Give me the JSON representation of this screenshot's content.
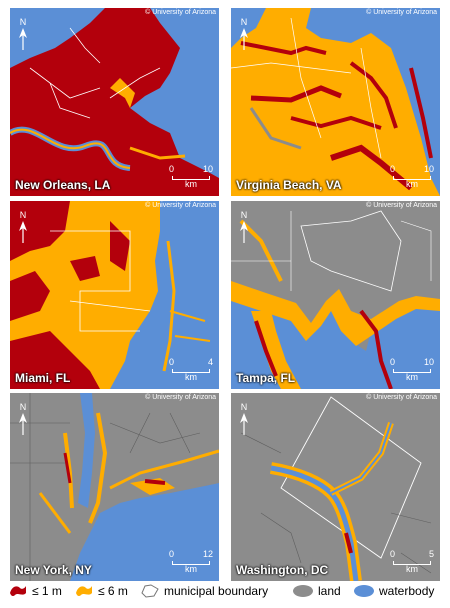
{
  "copyright": "© University of Arizona",
  "north_label": "N",
  "colors": {
    "water": "#5b8fd6",
    "land": "#8c8c8c",
    "inundation_1m": "#b3000c",
    "inundation_6m": "#ffad00",
    "boundary": "#ffffff"
  },
  "panels": [
    {
      "name": "New Orleans, LA",
      "scale_start": "0",
      "scale_end": "10",
      "scale_unit": "km"
    },
    {
      "name": "Virginia Beach, VA",
      "scale_start": "0",
      "scale_end": "10",
      "scale_unit": "km"
    },
    {
      "name": "Miami, FL",
      "scale_start": "0",
      "scale_end": "4",
      "scale_unit": "km"
    },
    {
      "name": "Tampa, FL",
      "scale_start": "0",
      "scale_end": "10",
      "scale_unit": "km"
    },
    {
      "name": "New York, NY",
      "scale_start": "0",
      "scale_end": "12",
      "scale_unit": "km"
    },
    {
      "name": "Washington, DC",
      "scale_start": "0",
      "scale_end": "5",
      "scale_unit": "km"
    }
  ],
  "legend": {
    "one_m": "≤ 1 m",
    "six_m": "≤ 6 m",
    "boundary": "municipal boundary",
    "land": "land",
    "water": "waterbody"
  }
}
